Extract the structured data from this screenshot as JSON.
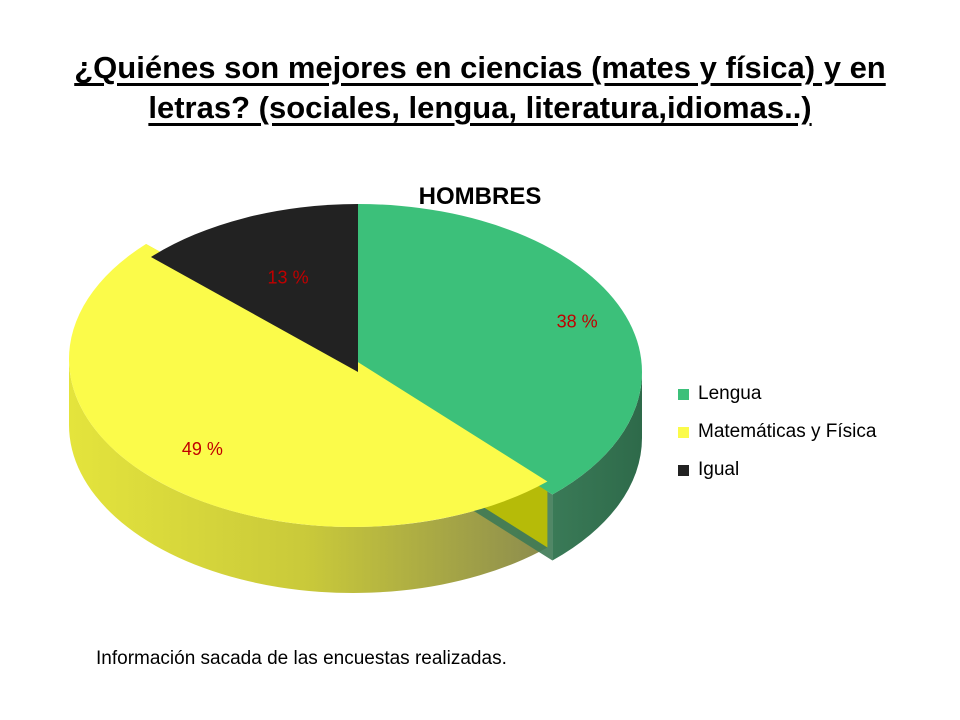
{
  "slide": {
    "title": "¿Quiénes son mejores en ciencias (mates y física) y en letras? (sociales, lengua, literatura,idiomas..)",
    "footnote": "Información sacada de las encuestas realizadas."
  },
  "chart_data": {
    "type": "pie",
    "style": "3d-exploded",
    "title": "HOMBRES",
    "categories": [
      "Lengua",
      "Matemáticas y Física",
      "Igual"
    ],
    "values": [
      38,
      49,
      13
    ],
    "data_labels": [
      "38 %",
      "49 %",
      "13 %"
    ],
    "colors": [
      "#3CC07A",
      "#FBFB4A",
      "#222222"
    ],
    "label_color": "#C00000",
    "legend_position": "right"
  }
}
